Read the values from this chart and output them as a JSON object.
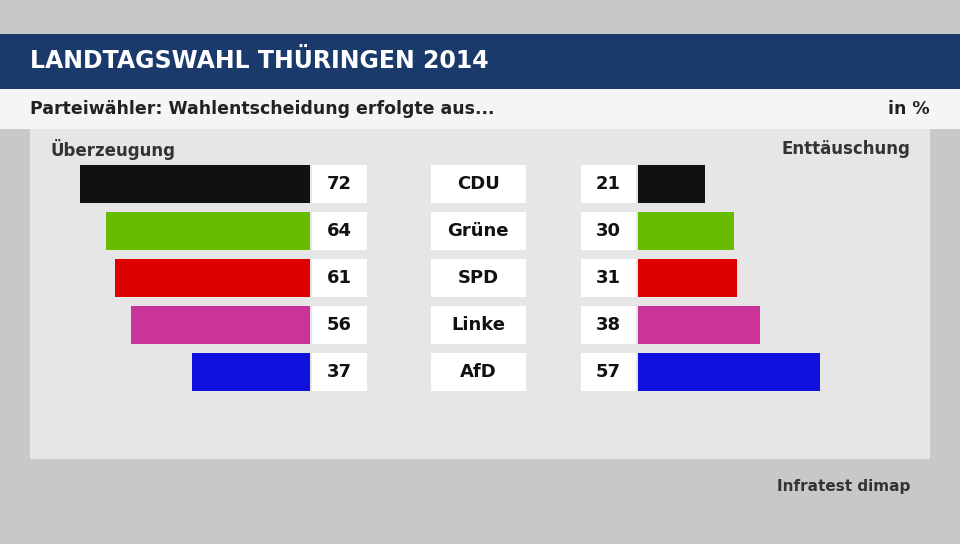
{
  "title": "LANDTAGSWAHL THÜRINGEN 2014",
  "subtitle": "Parteiwähler: Wahlentscheidung erfolgte aus...",
  "unit": "in %",
  "source": "Infratest dimap",
  "label_left": "Überzeugung",
  "label_right": "Enttäuschung",
  "parties": [
    "CDU",
    "Grüne",
    "SPD",
    "Linke",
    "AfD"
  ],
  "conviction": [
    72,
    64,
    61,
    56,
    37
  ],
  "disappointment": [
    21,
    30,
    31,
    38,
    57
  ],
  "colors": [
    "#111111",
    "#66bb00",
    "#dd0000",
    "#cc3399",
    "#1111dd"
  ],
  "title_bg": "#1a3a6b",
  "title_fg": "#ffffff",
  "subtitle_bg": "#ffffff",
  "subtitle_fg": "#222222",
  "bg_outer": "#c0c0c0",
  "bg_inner": "#e8e8e8",
  "figsize": [
    9.6,
    5.44
  ],
  "dpi": 100
}
